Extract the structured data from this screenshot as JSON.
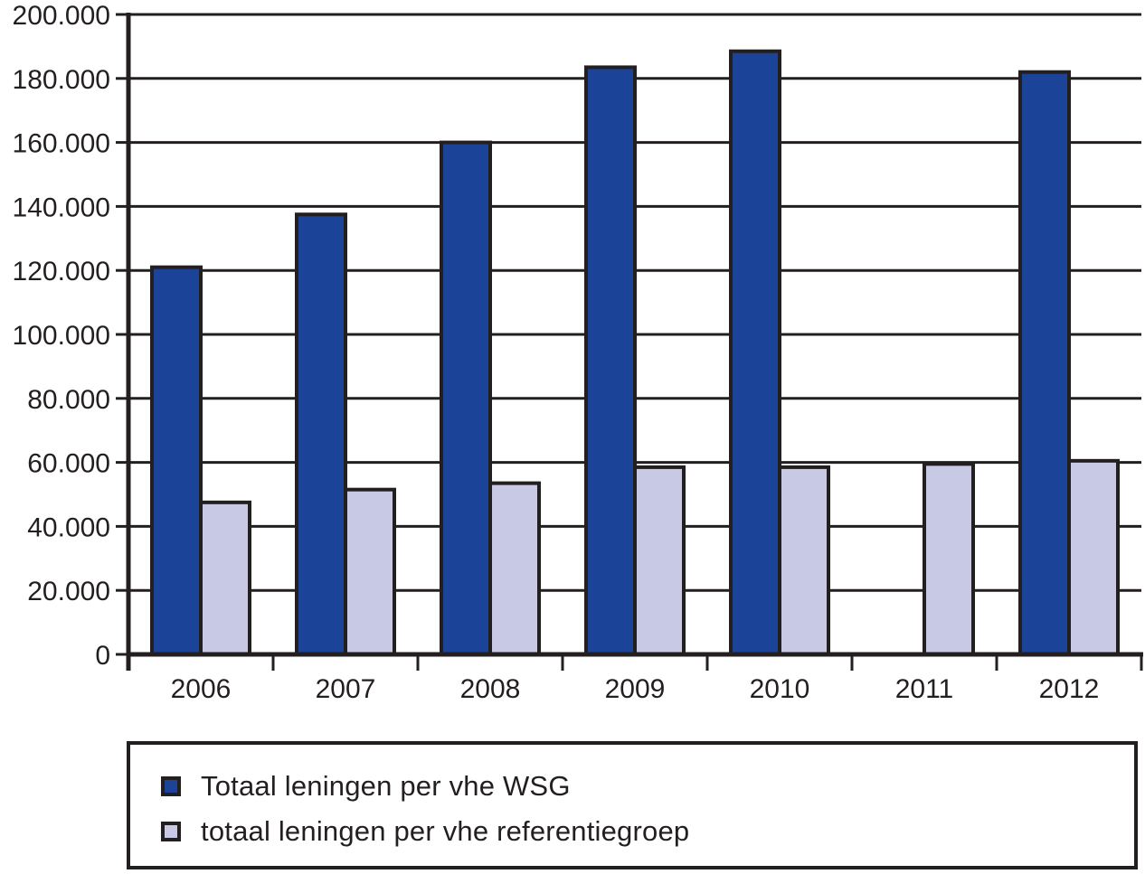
{
  "chart_data": {
    "type": "bar",
    "title": "",
    "xlabel": "",
    "ylabel": "",
    "ylim": [
      0,
      200000
    ],
    "yticks": [
      "0",
      "20.000",
      "40.000",
      "60.000",
      "80.000",
      "100.000",
      "120.000",
      "140.000",
      "160.000",
      "180.000",
      "200.000"
    ],
    "grid": true,
    "legend_position": "bottom",
    "categories": [
      "2006",
      "2007",
      "2008",
      "2009",
      "2010",
      "2011",
      "2012"
    ],
    "series": [
      {
        "name": "Totaal leningen per vhe WSG",
        "color": "#1b4499",
        "values": [
          121000,
          137500,
          160000,
          183500,
          188500,
          null,
          182000
        ]
      },
      {
        "name": "totaal leningen per vhe referentiegroep",
        "color": "#c8c9e4",
        "values": [
          47500,
          51500,
          53500,
          58500,
          58500,
          59500,
          60500
        ]
      }
    ]
  },
  "legend": {
    "items": [
      {
        "label": "Totaal leningen per vhe WSG",
        "color": "#1b4499"
      },
      {
        "label": "totaal leningen per vhe referentiegroep",
        "color": "#c8c9e4"
      }
    ]
  },
  "colors": {
    "axis": "#231f20",
    "background": "#ffffff"
  }
}
